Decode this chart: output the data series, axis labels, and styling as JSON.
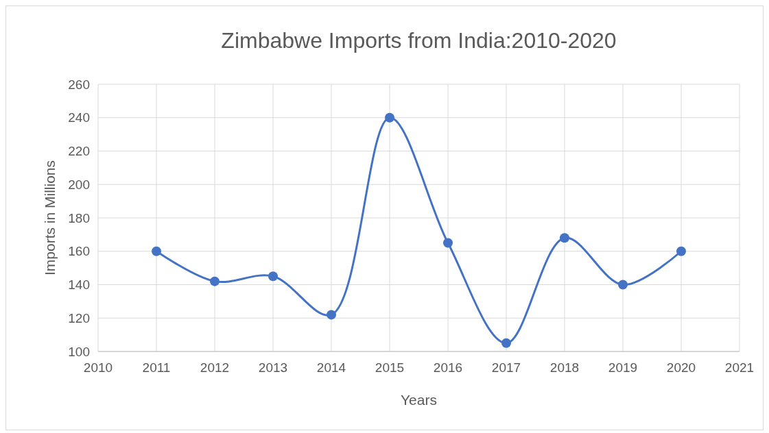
{
  "chart_data": {
    "type": "line",
    "title": "Zimbabwe Imports from India:2010-2020",
    "xlabel": "Years",
    "ylabel": "Imports in Millions",
    "x": [
      2011,
      2012,
      2013,
      2014,
      2015,
      2016,
      2017,
      2018,
      2019,
      2020
    ],
    "series": [
      {
        "color": "#4472c4",
        "values": [
          160,
          142,
          145,
          122,
          240,
          165,
          105,
          168,
          140,
          160
        ]
      }
    ],
    "xlim": [
      2010,
      2021
    ],
    "xticks": [
      2010,
      2011,
      2012,
      2013,
      2014,
      2015,
      2016,
      2017,
      2018,
      2019,
      2020,
      2021
    ],
    "ylim": [
      100,
      260
    ],
    "yticks": [
      100,
      120,
      140,
      160,
      180,
      200,
      220,
      240,
      260
    ],
    "grid": true,
    "marker": "circle",
    "line_style": "solid"
  }
}
